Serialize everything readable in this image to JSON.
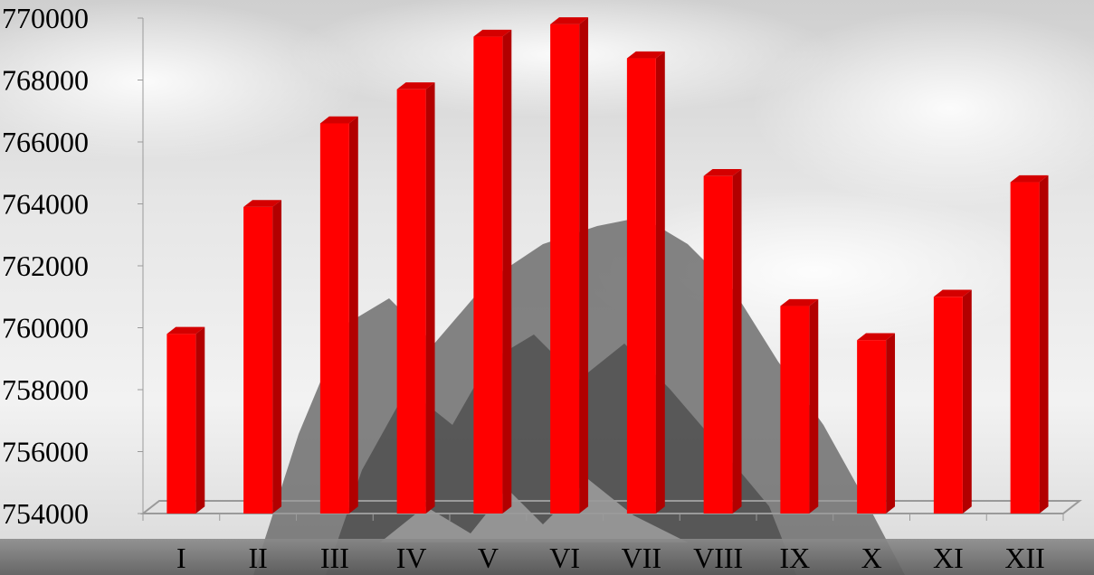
{
  "chart_data": {
    "type": "bar",
    "title": "",
    "xlabel": "",
    "ylabel": "",
    "categories": [
      "I",
      "II",
      "III",
      "IV",
      "V",
      "VI",
      "VII",
      "VIII",
      "IX",
      "X",
      "XI",
      "XII"
    ],
    "values": [
      759800,
      763900,
      766600,
      767700,
      769400,
      769800,
      768700,
      764900,
      760700,
      759600,
      761000,
      764700
    ],
    "ylim": [
      754000,
      770000
    ],
    "yticks": [
      754000,
      756000,
      758000,
      760000,
      762000,
      764000,
      766000,
      768000,
      770000
    ],
    "style": "3d-column",
    "grid": false,
    "legend": "none",
    "colors": {
      "bar_front": "#ff0000",
      "bar_side": "#b20000",
      "bar_top": "#d40000",
      "floor_line": "#9a9a9a",
      "background": "#b8b8b8"
    }
  }
}
